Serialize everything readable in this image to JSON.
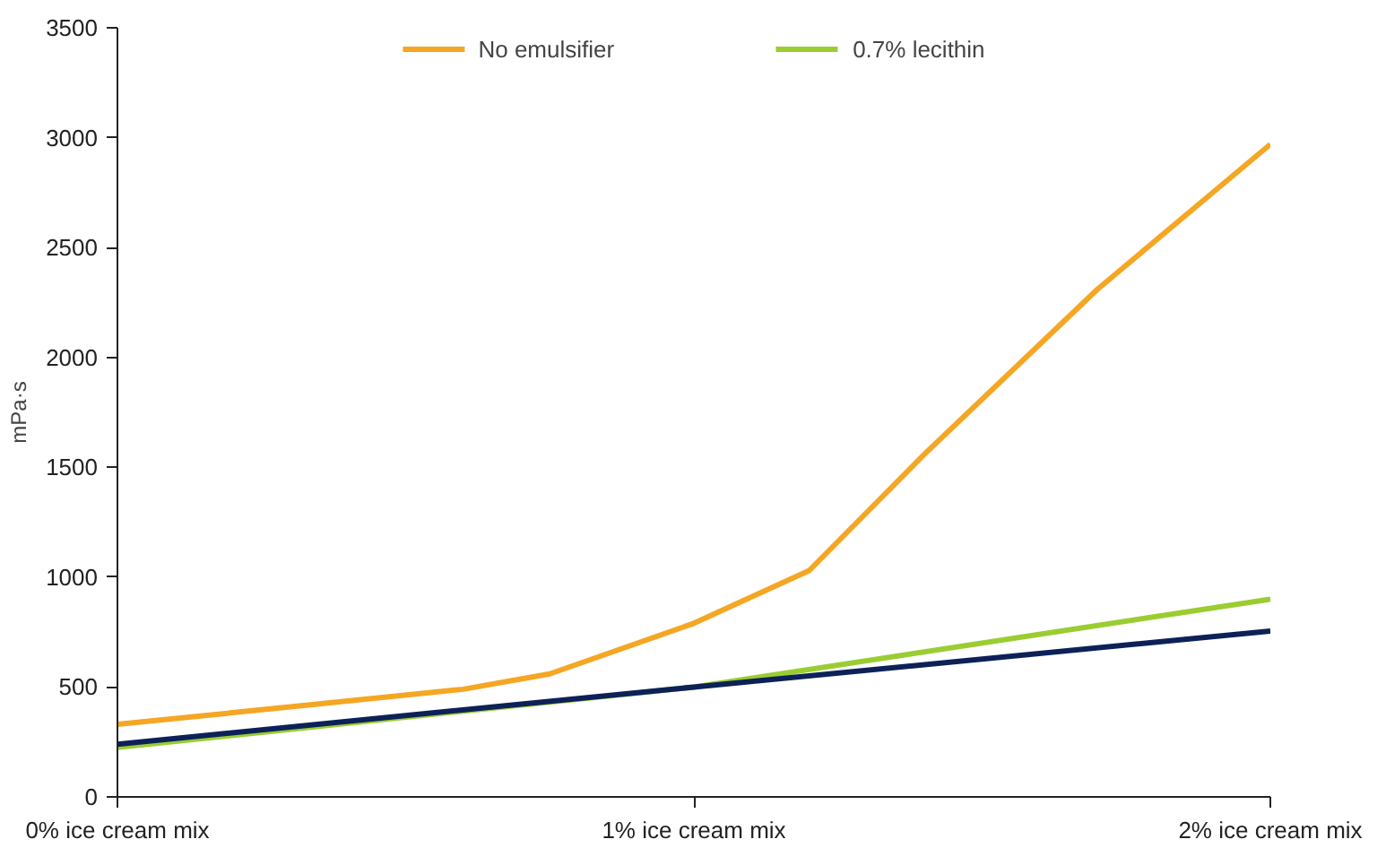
{
  "chart_data": {
    "type": "line",
    "ylabel": "mPa·s",
    "x": [
      0,
      1,
      2
    ],
    "xlim": [
      0,
      2
    ],
    "ylim": [
      0,
      3500
    ],
    "xticks": [
      {
        "value": 0,
        "label": "0% ice cream mix"
      },
      {
        "value": 1,
        "label": "1% ice cream mix"
      },
      {
        "value": 2,
        "label": "2% ice cream mix"
      }
    ],
    "yticks": [
      0,
      500,
      1000,
      1500,
      2000,
      2500,
      3000,
      3500
    ],
    "grid": false,
    "legend": "top",
    "marker": "none",
    "line_style": "solid",
    "series": [
      {
        "name": "No emulsifier",
        "color": "#f5a623",
        "x": [
          0,
          0.3,
          0.6,
          0.75,
          1.0,
          1.2,
          1.4,
          1.7,
          2.0
        ],
        "values": [
          330,
          410,
          490,
          560,
          790,
          1030,
          1560,
          2310,
          2970
        ]
      },
      {
        "name": "0.7% lecithin",
        "color": "#9acd32",
        "values": [
          225,
          500,
          900
        ]
      },
      {
        "color": "#0d2158",
        "values": [
          240,
          500,
          755
        ]
      }
    ]
  }
}
